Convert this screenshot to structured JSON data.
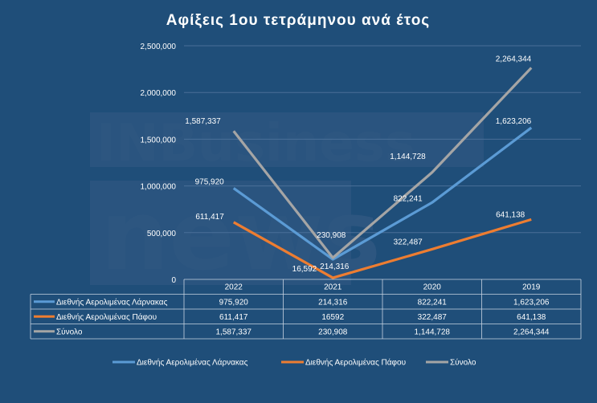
{
  "watermark": {
    "line1": "INBusiness",
    "line2": "news"
  },
  "chart_data": {
    "type": "line",
    "title": "Αφίξεις 1ου τετράμηνου  ανά έτος",
    "categories": [
      "2022",
      "2021",
      "2020",
      "2019"
    ],
    "ylim": [
      0,
      2500000
    ],
    "yticks": [
      "0",
      "500,000",
      "1,000,000",
      "1,500,000",
      "2,000,000",
      "2,500,000"
    ],
    "grid": true,
    "legend_position": "bottom",
    "series": [
      {
        "name": "Διεθνής Αερολιμένας Λάρνακας",
        "color": "#5b9bd5",
        "values": [
          975920,
          214316,
          822241,
          1623206
        ],
        "labels": [
          "975,920",
          "214,316",
          "822,241",
          "1,623,206"
        ],
        "table": [
          "975,920",
          "214,316",
          "822,241",
          "1,623,206"
        ]
      },
      {
        "name": "Διεθνής Αερολιμένας Πάφου",
        "color": "#ed7d31",
        "values": [
          611417,
          16592,
          322487,
          641138
        ],
        "labels": [
          "611,417",
          "16,592",
          "322,487",
          "641,138"
        ],
        "table": [
          "611,417",
          "16592",
          "322,487",
          "641,138"
        ]
      },
      {
        "name": "Σύνολο",
        "color": "#a5a5a5",
        "values": [
          1587337,
          230908,
          1144728,
          2264344
        ],
        "labels": [
          "1,587,337",
          "230,908",
          "1,144,728",
          "2,264,344"
        ],
        "table": [
          "1,587,337",
          "230,908",
          "1,144,728",
          "2,264,344"
        ]
      }
    ]
  }
}
